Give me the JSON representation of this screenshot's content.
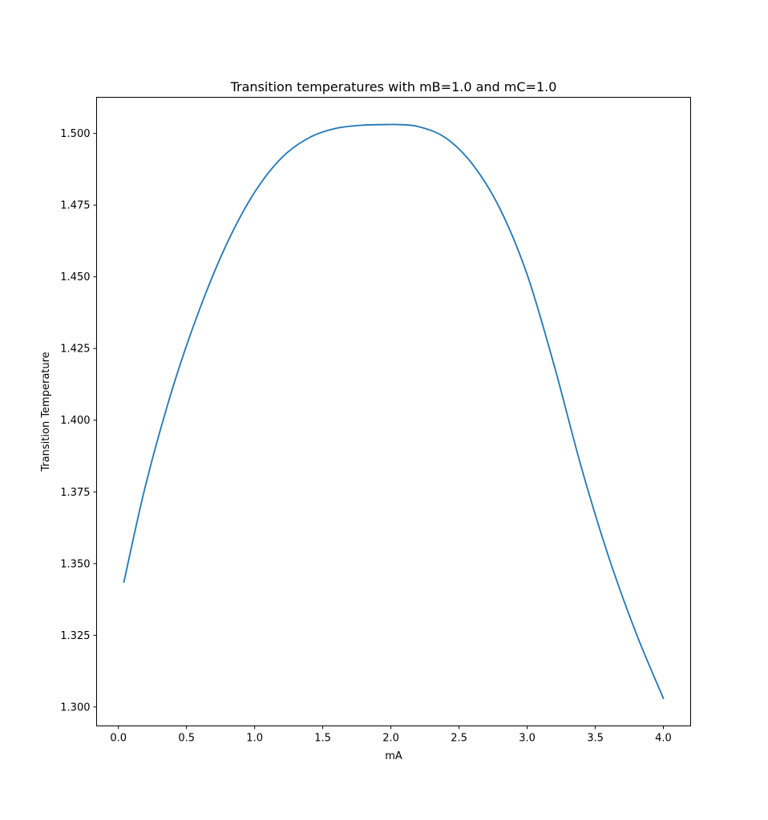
{
  "chart_data": {
    "type": "line",
    "title": "Transition temperatures with mB=1.0 and mC=1.0",
    "xlabel": "mA",
    "ylabel": "Transition Temperature",
    "xlim": [
      -0.16,
      4.2
    ],
    "ylim": [
      1.2934,
      1.5126
    ],
    "grid": false,
    "legend": "none",
    "x_ticks": [
      0.0,
      0.5,
      1.0,
      1.5,
      2.0,
      2.5,
      3.0,
      3.5,
      4.0
    ],
    "x_tick_labels": [
      "0.0",
      "0.5",
      "1.0",
      "1.5",
      "2.0",
      "2.5",
      "3.0",
      "3.5",
      "4.0"
    ],
    "y_ticks": [
      1.3,
      1.325,
      1.35,
      1.375,
      1.4,
      1.425,
      1.45,
      1.475,
      1.5
    ],
    "y_tick_labels": [
      "1.300",
      "1.325",
      "1.350",
      "1.375",
      "1.400",
      "1.425",
      "1.450",
      "1.475",
      "1.500"
    ],
    "series": [
      {
        "color": "#1f77b4",
        "x": [
          0.04,
          0.2,
          0.4,
          0.6,
          0.8,
          1.0,
          1.2,
          1.4,
          1.6,
          1.8,
          2.0,
          2.04,
          2.2,
          2.4,
          2.6,
          2.8,
          3.0,
          3.2,
          3.4,
          3.6,
          3.8,
          4.0
        ],
        "y": [
          1.3435,
          1.3774,
          1.4115,
          1.4392,
          1.462,
          1.4795,
          1.4916,
          1.4985,
          1.5018,
          1.5029,
          1.5031,
          1.5031,
          1.5024,
          1.4985,
          1.4892,
          1.4738,
          1.4508,
          1.4188,
          1.3832,
          1.3521,
          1.3257,
          1.303
        ]
      }
    ]
  }
}
